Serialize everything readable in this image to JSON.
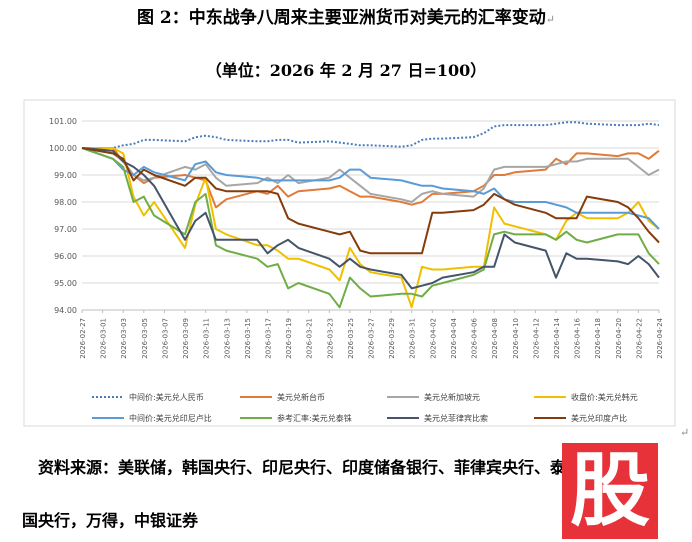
{
  "title": "图 2：中东战争八周来主要亚洲货币对美元的汇率变动",
  "subtitle": "（单位：2026 年 2 月 27 日=100）",
  "source_line1": "资料来源：美联储，韩国央行、印尼央行、印度储备银行、菲律宾央行、泰",
  "source_line2": "国央行，万得，中银证券",
  "watermark": "股",
  "chart_data": {
    "type": "line",
    "ylim": [
      94.0,
      101.0
    ],
    "yticks": [
      "94.00",
      "95.00",
      "96.00",
      "97.00",
      "98.00",
      "99.00",
      "100.00",
      "101.00"
    ],
    "x": [
      "2026-02-27",
      "2026-03-02",
      "2026-03-03",
      "2026-03-04",
      "2026-03-05",
      "2026-03-06",
      "2026-03-09",
      "2026-03-10",
      "2026-03-11",
      "2026-03-12",
      "2026-03-13",
      "2026-03-16",
      "2026-03-17",
      "2026-03-18",
      "2026-03-19",
      "2026-03-20",
      "2026-03-23",
      "2026-03-24",
      "2026-03-25",
      "2026-03-26",
      "2026-03-27",
      "2026-03-30",
      "2026-03-31",
      "2026-04-01",
      "2026-04-02",
      "2026-04-03",
      "2026-04-06",
      "2026-04-07",
      "2026-04-08",
      "2026-04-09",
      "2026-04-10",
      "2026-04-13",
      "2026-04-14",
      "2026-04-15",
      "2026-04-16",
      "2026-04-17",
      "2026-04-20",
      "2026-04-21",
      "2026-04-22",
      "2026-04-23",
      "2026-04-24"
    ],
    "xticks": [
      "2026-02-27",
      "2026-03-01",
      "2026-03-03",
      "2026-03-05",
      "2026-03-07",
      "2026-03-09",
      "2026-03-11",
      "2026-03-13",
      "2026-03-15",
      "2026-03-17",
      "2026-03-19",
      "2026-03-21",
      "2026-03-23",
      "2026-03-25",
      "2026-03-27",
      "2026-03-29",
      "2026-03-31",
      "2026-04-02",
      "2026-04-04",
      "2026-04-06",
      "2026-04-08",
      "2026-04-10",
      "2026-04-12",
      "2026-04-14",
      "2026-04-16",
      "2026-04-18",
      "2026-04-20",
      "2026-04-22",
      "2026-04-24"
    ],
    "legend_placement": "bottom",
    "grid": "horizontal",
    "series": [
      {
        "name": "中间价:美元兑人民币",
        "color": "#4a7ebb",
        "dash": "2,2",
        "values": [
          100.0,
          100.0,
          100.1,
          100.15,
          100.3,
          100.3,
          100.25,
          100.4,
          100.45,
          100.4,
          100.3,
          100.25,
          100.25,
          100.3,
          100.3,
          100.2,
          100.25,
          100.2,
          100.15,
          100.1,
          100.1,
          100.05,
          100.1,
          100.3,
          100.35,
          100.35,
          100.4,
          100.55,
          100.8,
          100.85,
          100.85,
          100.85,
          100.9,
          100.95,
          100.95,
          100.9,
          100.85,
          100.85,
          100.85,
          100.9,
          100.85
        ]
      },
      {
        "name": "美元兑新台币",
        "color": "#e07b39",
        "dash": "",
        "values": [
          100.0,
          100.0,
          99.5,
          99.0,
          98.7,
          98.9,
          99.0,
          98.9,
          98.8,
          97.8,
          98.1,
          98.4,
          98.3,
          98.6,
          98.2,
          98.4,
          98.5,
          98.6,
          98.4,
          98.2,
          98.2,
          98.0,
          97.9,
          98.0,
          98.3,
          98.3,
          98.4,
          98.6,
          99.0,
          99.0,
          99.1,
          99.2,
          99.6,
          99.4,
          99.8,
          99.8,
          99.7,
          99.8,
          99.8,
          99.6,
          99.9
        ]
      },
      {
        "name": "美元兑新加坡元",
        "color": "#a6a6a6",
        "dash": "",
        "values": [
          100.0,
          99.8,
          99.5,
          99.0,
          98.8,
          98.9,
          99.3,
          99.2,
          99.4,
          98.9,
          98.6,
          98.7,
          98.9,
          98.7,
          99.0,
          98.7,
          98.9,
          99.2,
          98.9,
          98.6,
          98.3,
          98.1,
          98.0,
          98.3,
          98.4,
          98.3,
          98.2,
          98.5,
          99.2,
          99.3,
          99.3,
          99.3,
          99.4,
          99.5,
          99.5,
          99.6,
          99.6,
          99.6,
          99.3,
          99.0,
          99.2
        ]
      },
      {
        "name": "收盘价:美元兑韩元",
        "color": "#f0c000",
        "dash": "",
        "values": [
          100.0,
          100.0,
          99.8,
          98.2,
          97.5,
          98.0,
          96.3,
          97.9,
          98.9,
          97.0,
          96.8,
          96.4,
          96.4,
          96.2,
          95.9,
          95.9,
          95.5,
          95.1,
          96.3,
          95.7,
          95.4,
          95.2,
          94.1,
          95.6,
          95.5,
          95.5,
          95.6,
          95.6,
          97.8,
          97.2,
          97.1,
          96.8,
          96.6,
          97.3,
          97.6,
          97.4,
          97.4,
          97.6,
          98.0,
          97.3,
          97.0
        ]
      },
      {
        "name": "中间价:美元兑印尼卢比",
        "color": "#5b9bd5",
        "dash": "",
        "values": [
          100.0,
          99.6,
          99.2,
          99.0,
          99.3,
          99.1,
          98.8,
          99.4,
          99.5,
          99.1,
          99.0,
          98.9,
          98.8,
          98.8,
          98.8,
          98.8,
          98.8,
          98.9,
          99.2,
          99.2,
          98.9,
          98.8,
          98.7,
          98.6,
          98.6,
          98.5,
          98.4,
          98.3,
          98.5,
          98.1,
          98.0,
          98.0,
          97.9,
          97.8,
          97.6,
          97.6,
          97.6,
          97.6,
          97.5,
          97.4,
          97.0
        ]
      },
      {
        "name": "参考汇率:美元兑泰铢",
        "color": "#70ad47",
        "dash": "",
        "values": [
          100.0,
          99.6,
          99.3,
          98.0,
          98.2,
          97.5,
          96.8,
          98.0,
          98.3,
          96.4,
          96.2,
          95.9,
          95.6,
          95.7,
          94.8,
          95.0,
          94.6,
          94.1,
          95.2,
          94.8,
          94.5,
          94.6,
          94.6,
          94.5,
          94.9,
          95.0,
          95.3,
          95.5,
          96.8,
          96.9,
          96.8,
          96.8,
          96.6,
          96.9,
          96.6,
          96.5,
          96.8,
          96.8,
          96.8,
          96.1,
          95.7
        ]
      },
      {
        "name": "美元兑菲律宾比索",
        "color": "#44546a",
        "dash": "",
        "values": [
          100.0,
          99.9,
          99.5,
          99.3,
          99.0,
          98.6,
          96.6,
          97.3,
          97.6,
          96.6,
          96.6,
          96.6,
          96.1,
          96.4,
          96.6,
          96.3,
          95.9,
          95.6,
          95.9,
          95.6,
          95.5,
          95.3,
          94.8,
          94.9,
          95.0,
          95.2,
          95.4,
          95.6,
          95.6,
          96.8,
          96.5,
          96.2,
          95.2,
          96.1,
          95.9,
          95.9,
          95.8,
          95.7,
          96.0,
          95.7,
          95.2
        ]
      },
      {
        "name": "美元兑印度卢比",
        "color": "#843c0c",
        "dash": "",
        "values": [
          100.0,
          99.8,
          99.6,
          98.8,
          99.2,
          99.0,
          98.6,
          98.9,
          98.9,
          98.5,
          98.4,
          98.4,
          98.4,
          98.3,
          97.4,
          97.2,
          96.9,
          96.8,
          96.9,
          96.2,
          96.1,
          96.1,
          96.1,
          96.1,
          97.6,
          97.6,
          97.7,
          97.9,
          98.3,
          98.1,
          97.9,
          97.6,
          97.4,
          97.4,
          97.4,
          98.2,
          98.0,
          97.8,
          97.4,
          96.9,
          96.5
        ]
      }
    ]
  }
}
